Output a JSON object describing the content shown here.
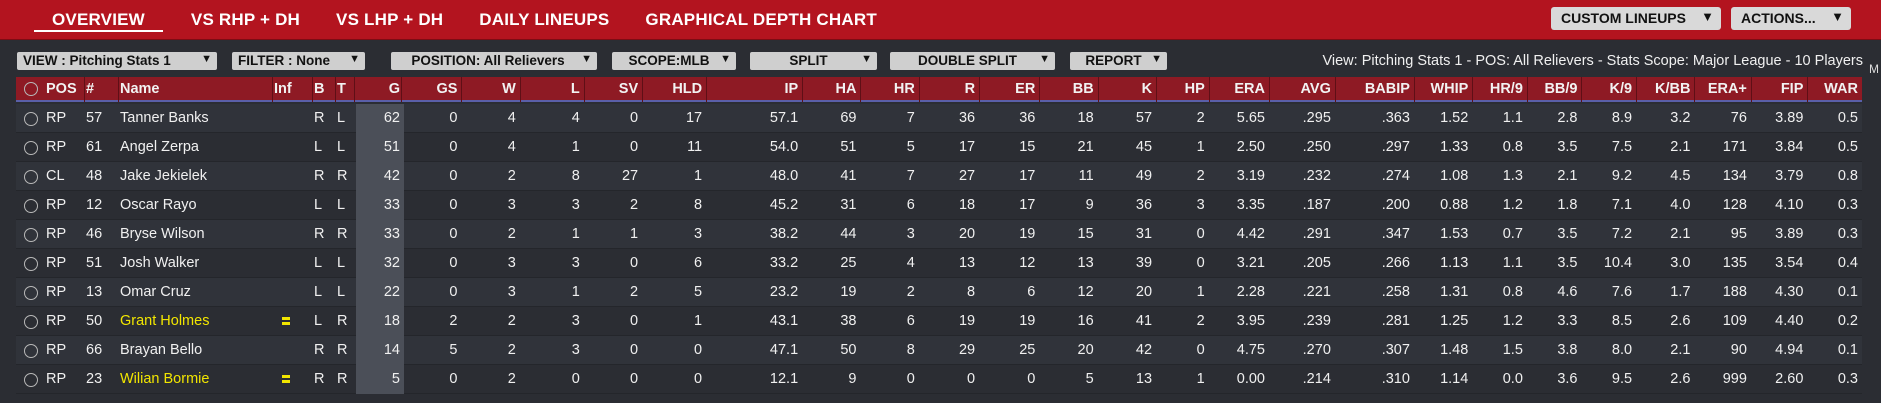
{
  "nav": {
    "tabs": [
      "OVERVIEW",
      "VS RHP + DH",
      "VS LHP + DH",
      "DAILY LINEUPS",
      "GRAPHICAL DEPTH CHART"
    ],
    "active_tab": "OVERVIEW",
    "custom_lineups_label": "CUSTOM LINEUPS",
    "actions_label": "ACTIONS..."
  },
  "filters": {
    "view": "VIEW : Pitching Stats 1",
    "filter": "FILTER : None",
    "position": "POSITION: All Relievers",
    "scope": "SCOPE:MLB",
    "split": "SPLIT",
    "double_split": "DOUBLE SPLIT",
    "report": "REPORT",
    "summary": "View: Pitching Stats 1 - POS: All Relievers - Stats Scope: Major League - 10 Players"
  },
  "table": {
    "columns": [
      "POS",
      "#",
      "Name",
      "Inf",
      "B",
      "T",
      "G",
      "GS",
      "W",
      "L",
      "SV",
      "HLD",
      "IP",
      "HA",
      "HR",
      "R",
      "ER",
      "BB",
      "K",
      "HP",
      "ERA",
      "AVG",
      "BABIP",
      "WHIP",
      "HR/9",
      "BB/9",
      "K/9",
      "K/BB",
      "ERA+",
      "FIP",
      "WAR"
    ],
    "rows": [
      {
        "pos": "RP",
        "num": "57",
        "name": "Tanner Banks",
        "highlight": false,
        "injured": false,
        "b": "R",
        "t": "L",
        "g": "62",
        "gs": "0",
        "w": "4",
        "l": "4",
        "sv": "0",
        "hld": "17",
        "ip": "57.1",
        "ha": "69",
        "hr": "7",
        "r": "36",
        "er": "36",
        "bb": "18",
        "k": "57",
        "hp": "2",
        "era": "5.65",
        "avg": ".295",
        "babip": ".363",
        "whip": "1.52",
        "hr9": "1.1",
        "bb9": "2.8",
        "k9": "8.9",
        "kbb": "3.2",
        "eraplus": "76",
        "fip": "3.89",
        "war": "0.5"
      },
      {
        "pos": "RP",
        "num": "61",
        "name": "Angel Zerpa",
        "highlight": false,
        "injured": false,
        "b": "L",
        "t": "L",
        "g": "51",
        "gs": "0",
        "w": "4",
        "l": "1",
        "sv": "0",
        "hld": "11",
        "ip": "54.0",
        "ha": "51",
        "hr": "5",
        "r": "17",
        "er": "15",
        "bb": "21",
        "k": "45",
        "hp": "1",
        "era": "2.50",
        "avg": ".250",
        "babip": ".297",
        "whip": "1.33",
        "hr9": "0.8",
        "bb9": "3.5",
        "k9": "7.5",
        "kbb": "2.1",
        "eraplus": "171",
        "fip": "3.84",
        "war": "0.5"
      },
      {
        "pos": "CL",
        "num": "48",
        "name": "Jake Jekielek",
        "highlight": false,
        "injured": false,
        "b": "R",
        "t": "R",
        "g": "42",
        "gs": "0",
        "w": "2",
        "l": "8",
        "sv": "27",
        "hld": "1",
        "ip": "48.0",
        "ha": "41",
        "hr": "7",
        "r": "27",
        "er": "17",
        "bb": "11",
        "k": "49",
        "hp": "2",
        "era": "3.19",
        "avg": ".232",
        "babip": ".274",
        "whip": "1.08",
        "hr9": "1.3",
        "bb9": "2.1",
        "k9": "9.2",
        "kbb": "4.5",
        "eraplus": "134",
        "fip": "3.79",
        "war": "0.8"
      },
      {
        "pos": "RP",
        "num": "12",
        "name": "Oscar Rayo",
        "highlight": false,
        "injured": false,
        "b": "L",
        "t": "L",
        "g": "33",
        "gs": "0",
        "w": "3",
        "l": "3",
        "sv": "2",
        "hld": "8",
        "ip": "45.2",
        "ha": "31",
        "hr": "6",
        "r": "18",
        "er": "17",
        "bb": "9",
        "k": "36",
        "hp": "3",
        "era": "3.35",
        "avg": ".187",
        "babip": ".200",
        "whip": "0.88",
        "hr9": "1.2",
        "bb9": "1.8",
        "k9": "7.1",
        "kbb": "4.0",
        "eraplus": "128",
        "fip": "4.10",
        "war": "0.3"
      },
      {
        "pos": "RP",
        "num": "46",
        "name": "Bryse Wilson",
        "highlight": false,
        "injured": false,
        "b": "R",
        "t": "R",
        "g": "33",
        "gs": "0",
        "w": "2",
        "l": "1",
        "sv": "1",
        "hld": "3",
        "ip": "38.2",
        "ha": "44",
        "hr": "3",
        "r": "20",
        "er": "19",
        "bb": "15",
        "k": "31",
        "hp": "0",
        "era": "4.42",
        "avg": ".291",
        "babip": ".347",
        "whip": "1.53",
        "hr9": "0.7",
        "bb9": "3.5",
        "k9": "7.2",
        "kbb": "2.1",
        "eraplus": "95",
        "fip": "3.89",
        "war": "0.3"
      },
      {
        "pos": "RP",
        "num": "51",
        "name": "Josh Walker",
        "highlight": false,
        "injured": false,
        "b": "L",
        "t": "L",
        "g": "32",
        "gs": "0",
        "w": "3",
        "l": "3",
        "sv": "0",
        "hld": "6",
        "ip": "33.2",
        "ha": "25",
        "hr": "4",
        "r": "13",
        "er": "12",
        "bb": "13",
        "k": "39",
        "hp": "0",
        "era": "3.21",
        "avg": ".205",
        "babip": ".266",
        "whip": "1.13",
        "hr9": "1.1",
        "bb9": "3.5",
        "k9": "10.4",
        "kbb": "3.0",
        "eraplus": "135",
        "fip": "3.54",
        "war": "0.4"
      },
      {
        "pos": "RP",
        "num": "13",
        "name": "Omar Cruz",
        "highlight": false,
        "injured": false,
        "b": "L",
        "t": "L",
        "g": "22",
        "gs": "0",
        "w": "3",
        "l": "1",
        "sv": "2",
        "hld": "5",
        "ip": "23.2",
        "ha": "19",
        "hr": "2",
        "r": "8",
        "er": "6",
        "bb": "12",
        "k": "20",
        "hp": "1",
        "era": "2.28",
        "avg": ".221",
        "babip": ".258",
        "whip": "1.31",
        "hr9": "0.8",
        "bb9": "4.6",
        "k9": "7.6",
        "kbb": "1.7",
        "eraplus": "188",
        "fip": "4.30",
        "war": "0.1"
      },
      {
        "pos": "RP",
        "num": "50",
        "name": "Grant Holmes",
        "highlight": true,
        "injured": true,
        "b": "L",
        "t": "R",
        "g": "18",
        "gs": "2",
        "w": "2",
        "l": "3",
        "sv": "0",
        "hld": "1",
        "ip": "43.1",
        "ha": "38",
        "hr": "6",
        "r": "19",
        "er": "19",
        "bb": "16",
        "k": "41",
        "hp": "2",
        "era": "3.95",
        "avg": ".239",
        "babip": ".281",
        "whip": "1.25",
        "hr9": "1.2",
        "bb9": "3.3",
        "k9": "8.5",
        "kbb": "2.6",
        "eraplus": "109",
        "fip": "4.40",
        "war": "0.2"
      },
      {
        "pos": "RP",
        "num": "66",
        "name": "Brayan Bello",
        "highlight": false,
        "injured": false,
        "b": "R",
        "t": "R",
        "g": "14",
        "gs": "5",
        "w": "2",
        "l": "3",
        "sv": "0",
        "hld": "0",
        "ip": "47.1",
        "ha": "50",
        "hr": "8",
        "r": "29",
        "er": "25",
        "bb": "20",
        "k": "42",
        "hp": "0",
        "era": "4.75",
        "avg": ".270",
        "babip": ".307",
        "whip": "1.48",
        "hr9": "1.5",
        "bb9": "3.8",
        "k9": "8.0",
        "kbb": "2.1",
        "eraplus": "90",
        "fip": "4.94",
        "war": "0.1"
      },
      {
        "pos": "RP",
        "num": "23",
        "name": "Wilian Bormie",
        "highlight": true,
        "injured": true,
        "b": "R",
        "t": "R",
        "g": "5",
        "gs": "0",
        "w": "2",
        "l": "0",
        "sv": "0",
        "hld": "0",
        "ip": "12.1",
        "ha": "9",
        "hr": "0",
        "r": "0",
        "er": "0",
        "bb": "5",
        "k": "13",
        "hp": "1",
        "era": "0.00",
        "avg": ".214",
        "babip": ".310",
        "whip": "1.14",
        "hr9": "0.0",
        "bb9": "3.6",
        "k9": "9.5",
        "kbb": "2.6",
        "eraplus": "999",
        "fip": "2.60",
        "war": "0.3"
      }
    ]
  },
  "colors": {
    "nav_red": "#b3141f",
    "header_red": "#8e1a24",
    "highlight_yellow": "#f2e600",
    "background": "#2b2d33"
  },
  "icons": {
    "row_select": "radio-circle-icon",
    "injury": "injury-bars-icon",
    "dropdown": "chevron-down-icon"
  }
}
